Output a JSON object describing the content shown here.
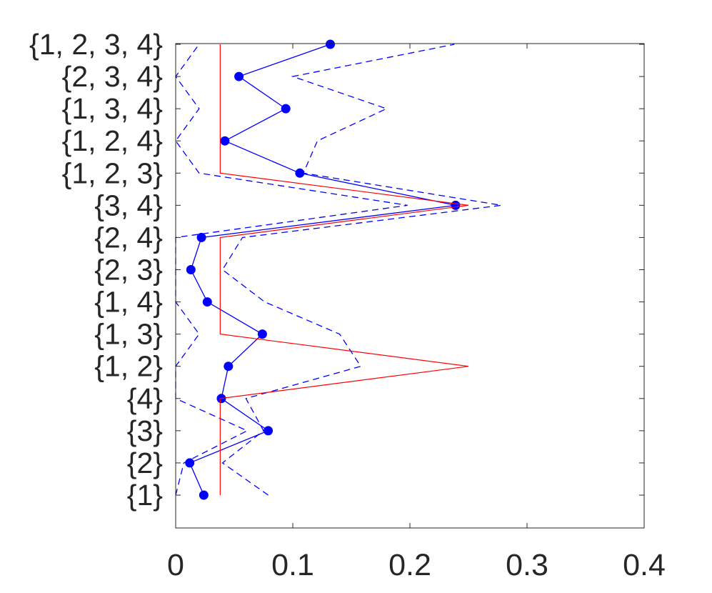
{
  "chart_data": {
    "type": "line",
    "title": "",
    "xlabel": "",
    "ylabel": "",
    "xlim": [
      0,
      0.4
    ],
    "x_ticks": [
      "0",
      "0.1",
      "0.2",
      "0.3",
      "0.4"
    ],
    "categories": [
      "{1}",
      "{2}",
      "{3}",
      "{4}",
      "{1, 2}",
      "{1, 3}",
      "{1, 4}",
      "{2, 3}",
      "{2, 4}",
      "{3, 4}",
      "{1, 2, 3}",
      "{1, 2, 4}",
      "{1, 3, 4}",
      "{2, 3, 4}",
      "{1, 2, 3, 4}"
    ],
    "grid": false,
    "legend": "none",
    "series": [
      {
        "style": "solid-with-markers",
        "color": "#0000ff",
        "values": [
          0.024,
          0.012,
          0.079,
          0.039,
          0.045,
          0.074,
          0.027,
          0.013,
          0.022,
          0.239,
          0.106,
          0.042,
          0.094,
          0.054,
          0.132
        ]
      },
      {
        "style": "dashed",
        "color": "#0000ff",
        "values": [
          0.079,
          0.04,
          0.075,
          0.06,
          0.158,
          0.14,
          0.076,
          0.04,
          0.057,
          0.278,
          0.109,
          0.121,
          0.18,
          0.1,
          0.238
        ]
      },
      {
        "style": "dashed",
        "color": "#0000ff",
        "values": [
          0.0,
          0.007,
          0.061,
          0.0,
          0.0,
          0.02,
          0.0,
          0.0,
          0.0,
          0.198,
          0.02,
          0.0,
          0.02,
          0.0,
          0.02
        ]
      },
      {
        "style": "solid",
        "color": "#ff0000",
        "values": [
          0.038,
          0.038,
          0.038,
          0.038,
          0.25,
          0.038,
          0.038,
          0.038,
          0.038,
          0.25,
          0.038,
          0.038,
          0.038,
          0.038,
          0.038
        ]
      }
    ]
  }
}
